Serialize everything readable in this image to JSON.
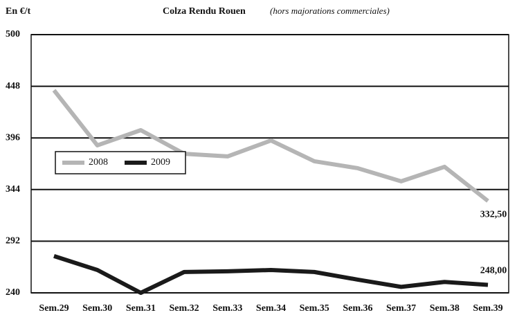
{
  "chart_data": {
    "type": "line",
    "title": "Colza Rendu Rouen",
    "subtitle": "(hors majorations commerciales)",
    "y_label": "En €/t",
    "categories": [
      "Sem.29",
      "Sem.30",
      "Sem.31",
      "Sem.32",
      "Sem.33",
      "Sem.34",
      "Sem.35",
      "Sem.36",
      "Sem.37",
      "Sem.38",
      "Sem.39"
    ],
    "series": [
      {
        "name": "2008",
        "color": "#b5b5b5",
        "values": [
          444,
          388.5,
          403.8,
          380,
          377.4,
          393.4,
          372.5,
          365.5,
          352.3,
          366.9,
          332.5
        ],
        "value_labels": [
          null,
          null,
          null,
          null,
          null,
          null,
          null,
          null,
          null,
          null,
          "332,50"
        ]
      },
      {
        "name": "2009",
        "color": "#1a1a1a",
        "values": [
          277,
          263,
          240,
          261,
          261.7,
          263,
          261,
          253.3,
          246,
          251,
          248
        ],
        "value_labels": [
          null,
          null,
          null,
          null,
          null,
          null,
          null,
          null,
          null,
          null,
          "248,00"
        ]
      }
    ],
    "ylim": [
      240,
      500
    ],
    "yticks": [
      240,
      292,
      344,
      396,
      448,
      500
    ],
    "grid": true,
    "legend": "left"
  }
}
